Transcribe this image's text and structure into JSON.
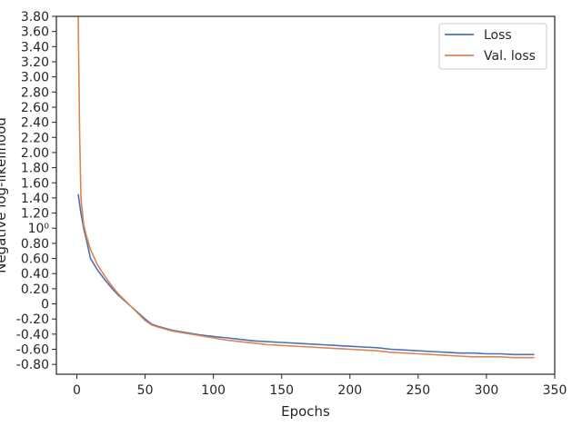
{
  "chart_data": {
    "type": "line",
    "title": "",
    "xlabel": "Epochs",
    "ylabel": "Negative log-likelihood",
    "xlim": [
      -15,
      350
    ],
    "ylim": [
      -0.93,
      3.8
    ],
    "xticks": [
      0,
      50,
      100,
      150,
      200,
      250,
      300,
      350
    ],
    "yticks": [
      {
        "value": 3.8,
        "label": "3.80"
      },
      {
        "value": 3.6,
        "label": "3.60"
      },
      {
        "value": 3.4,
        "label": "3.40"
      },
      {
        "value": 3.2,
        "label": "3.20"
      },
      {
        "value": 3.0,
        "label": "3.00"
      },
      {
        "value": 2.8,
        "label": "2.80"
      },
      {
        "value": 2.6,
        "label": "2.60"
      },
      {
        "value": 2.4,
        "label": "2.40"
      },
      {
        "value": 2.2,
        "label": "2.20"
      },
      {
        "value": 2.0,
        "label": "2.00"
      },
      {
        "value": 1.8,
        "label": "1.80"
      },
      {
        "value": 1.6,
        "label": "1.60"
      },
      {
        "value": 1.4,
        "label": "1.40"
      },
      {
        "value": 1.2,
        "label": "1.20"
      },
      {
        "value": 1.0,
        "label": "10⁰"
      },
      {
        "value": 0.8,
        "label": "0.80"
      },
      {
        "value": 0.6,
        "label": "0.60"
      },
      {
        "value": 0.4,
        "label": "0.40"
      },
      {
        "value": 0.2,
        "label": "0.20"
      },
      {
        "value": 0.0,
        "label": "0"
      },
      {
        "value": -0.2,
        "label": "-0.20"
      },
      {
        "value": -0.4,
        "label": "-0.40"
      },
      {
        "value": -0.6,
        "label": "-0.60"
      },
      {
        "value": -0.8,
        "label": "-0.80"
      }
    ],
    "grid": false,
    "legend_position": "top-right",
    "series": [
      {
        "name": "Loss",
        "color": "#4c72b0",
        "x": [
          1,
          3,
          5,
          7,
          10,
          15,
          20,
          25,
          30,
          35,
          40,
          45,
          50,
          55,
          60,
          70,
          80,
          90,
          100,
          110,
          120,
          130,
          140,
          150,
          160,
          170,
          180,
          190,
          200,
          210,
          220,
          230,
          240,
          250,
          260,
          270,
          280,
          290,
          300,
          310,
          320,
          330,
          335
        ],
        "y": [
          1.45,
          1.2,
          1.0,
          0.85,
          0.6,
          0.45,
          0.33,
          0.22,
          0.12,
          0.04,
          -0.04,
          -0.12,
          -0.2,
          -0.27,
          -0.3,
          -0.35,
          -0.38,
          -0.41,
          -0.43,
          -0.45,
          -0.47,
          -0.49,
          -0.5,
          -0.51,
          -0.52,
          -0.53,
          -0.54,
          -0.55,
          -0.56,
          -0.57,
          -0.58,
          -0.6,
          -0.61,
          -0.62,
          -0.63,
          -0.64,
          -0.65,
          -0.65,
          -0.66,
          -0.66,
          -0.67,
          -0.67,
          -0.67
        ]
      },
      {
        "name": "Val. loss",
        "color": "#dd8452",
        "x": [
          1,
          2,
          3,
          5,
          7,
          10,
          15,
          20,
          25,
          30,
          35,
          40,
          45,
          50,
          55,
          60,
          70,
          80,
          90,
          100,
          110,
          120,
          130,
          140,
          150,
          160,
          170,
          180,
          190,
          200,
          210,
          220,
          230,
          240,
          250,
          260,
          270,
          280,
          290,
          300,
          310,
          320,
          330,
          335
        ],
        "y": [
          3.8,
          2.3,
          1.4,
          1.05,
          0.9,
          0.72,
          0.52,
          0.38,
          0.25,
          0.14,
          0.05,
          -0.04,
          -0.13,
          -0.22,
          -0.28,
          -0.31,
          -0.36,
          -0.39,
          -0.42,
          -0.45,
          -0.48,
          -0.5,
          -0.52,
          -0.54,
          -0.55,
          -0.56,
          -0.57,
          -0.58,
          -0.59,
          -0.6,
          -0.61,
          -0.62,
          -0.64,
          -0.65,
          -0.66,
          -0.67,
          -0.68,
          -0.69,
          -0.7,
          -0.7,
          -0.7,
          -0.71,
          -0.71,
          -0.71
        ]
      }
    ]
  }
}
